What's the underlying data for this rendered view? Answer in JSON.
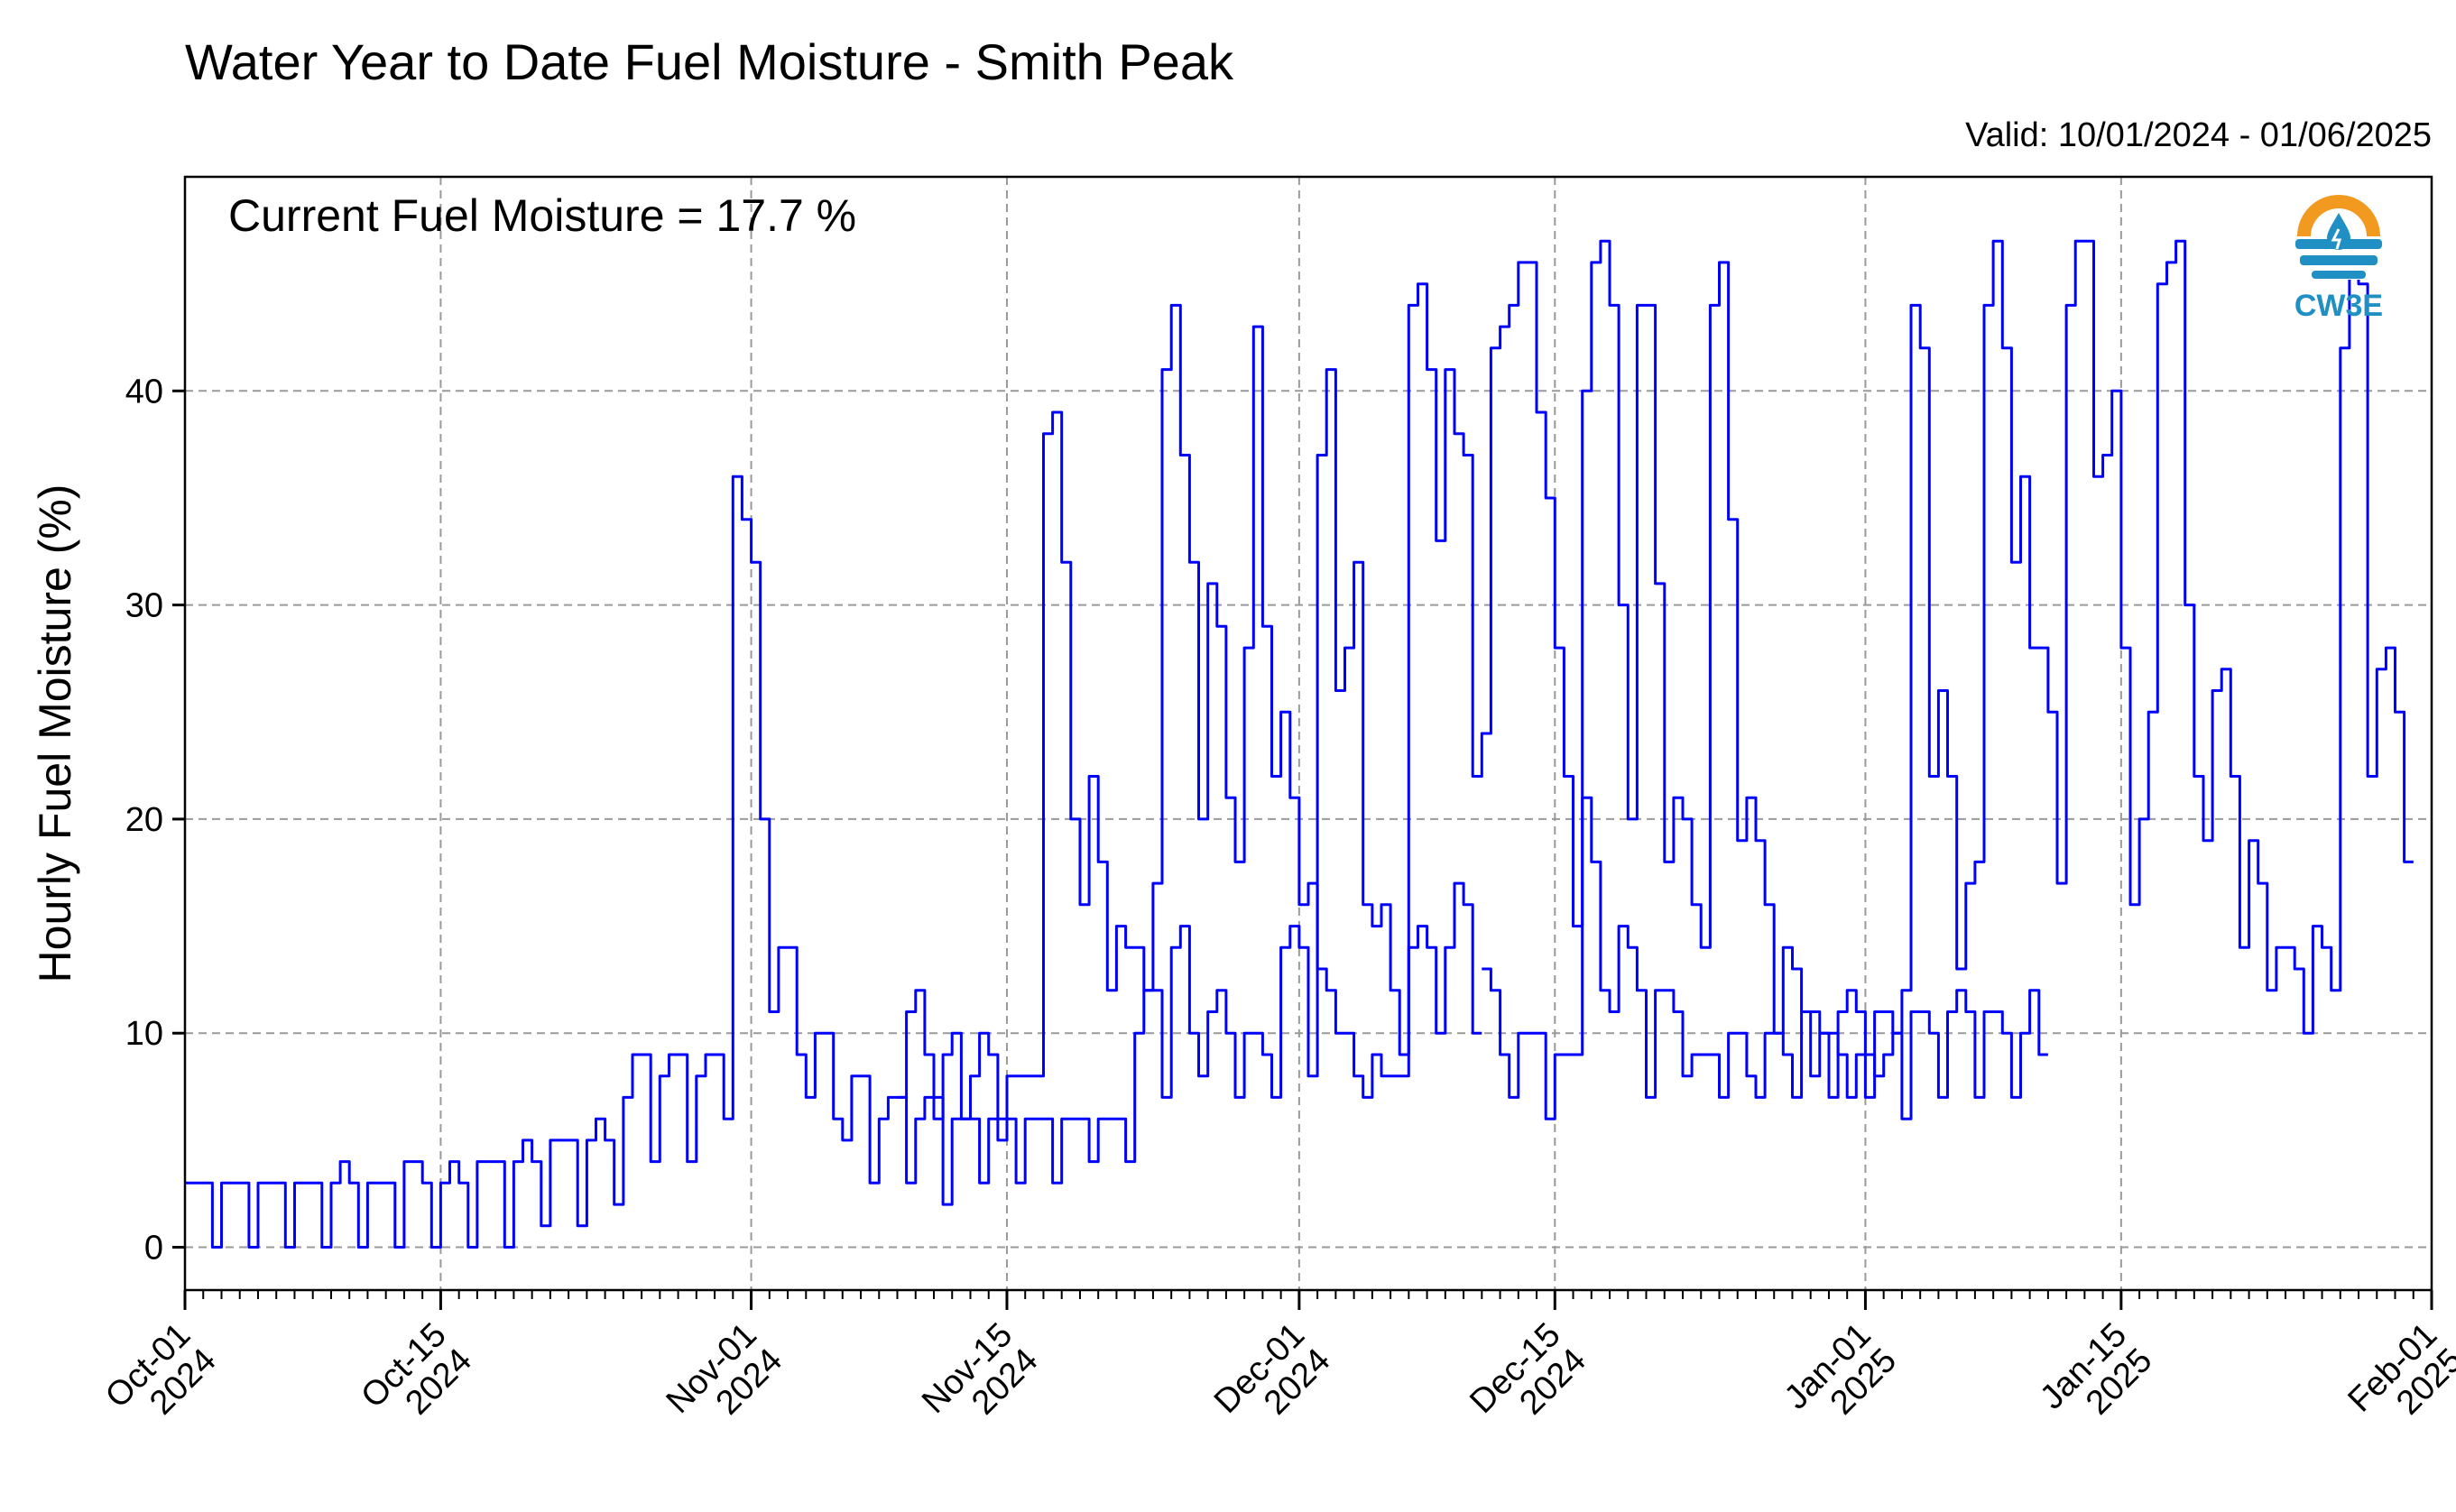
{
  "chart_data": {
    "type": "line",
    "title": "Water Year to Date Fuel Moisture - Smith Peak",
    "valid_text": "Valid: 10/01/2024 - 01/06/2025",
    "annotation": "Current Fuel Moisture = 17.7 %",
    "xlabel": "",
    "ylabel": "Hourly Fuel Moisture (%)",
    "xlim": [
      "2024-10-01",
      "2025-02-01"
    ],
    "ylim": [
      -2,
      50
    ],
    "grid": true,
    "yticks": [
      0,
      10,
      20,
      30,
      40
    ],
    "xticks": [
      {
        "date": "2024-10-01",
        "line1": "Oct-01",
        "line2": "2024"
      },
      {
        "date": "2024-10-15",
        "line1": "Oct-15",
        "line2": "2024"
      },
      {
        "date": "2024-11-01",
        "line1": "Nov-01",
        "line2": "2024"
      },
      {
        "date": "2024-11-15",
        "line1": "Nov-15",
        "line2": "2024"
      },
      {
        "date": "2024-12-01",
        "line1": "Dec-01",
        "line2": "2024"
      },
      {
        "date": "2024-12-15",
        "line1": "Dec-15",
        "line2": "2024"
      },
      {
        "date": "2025-01-01",
        "line1": "Jan-01",
        "line2": "2025"
      },
      {
        "date": "2025-01-15",
        "line1": "Jan-15",
        "line2": "2025"
      },
      {
        "date": "2025-02-01",
        "line1": "Feb-01",
        "line2": "2025"
      }
    ],
    "series": [
      {
        "color": "#0000ff",
        "segments": [
          {
            "start": "2024-10-01",
            "step_hours": 12,
            "values": [
              3,
              3,
              3,
              0,
              3,
              3,
              3,
              0,
              3,
              3,
              3,
              0,
              3,
              3,
              3,
              0,
              3,
              4,
              3,
              0,
              3,
              3,
              3,
              0,
              4,
              4,
              3,
              0,
              3,
              4,
              3,
              0,
              4,
              4,
              4,
              0,
              4,
              5,
              4,
              1,
              5,
              5,
              5,
              1,
              5,
              6,
              5,
              2,
              7,
              9,
              9,
              4,
              8,
              9,
              9,
              4,
              8,
              9,
              9,
              6,
              36,
              34,
              32,
              20,
              11,
              14,
              14,
              9,
              7,
              10,
              10,
              6,
              5,
              8,
              8,
              3,
              6,
              7,
              7,
              3,
              6,
              7,
              7,
              2,
              6,
              6,
              6,
              3,
              6,
              6,
              6,
              3,
              6,
              6,
              6,
              3,
              6,
              6,
              6,
              4,
              6,
              6,
              6,
              4,
              10,
              12,
              12,
              7,
              14,
              15,
              10,
              8,
              11,
              12,
              10,
              7,
              10,
              10,
              9,
              7,
              14,
              15,
              14,
              8,
              37,
              41,
              26,
              28,
              32,
              16,
              15,
              16,
              12,
              9,
              14,
              15,
              14,
              10,
              14,
              17,
              16,
              10
            ]
          },
          {
            "start": "2024-11-09",
            "step_hours": 12,
            "values": [
              7,
              11,
              12,
              9,
              6,
              9,
              10,
              6,
              8,
              10,
              9,
              5,
              8,
              8,
              8,
              8,
              38,
              39,
              32,
              20,
              16,
              22,
              18,
              12,
              15,
              14,
              14,
              12,
              17,
              41,
              44,
              37,
              32,
              20,
              31,
              29,
              21,
              18,
              28,
              43,
              29,
              22,
              25,
              21,
              16,
              17,
              13,
              12,
              10,
              10,
              8,
              7,
              9,
              8,
              8,
              8,
              44,
              45,
              41,
              33,
              41,
              38,
              37,
              22,
              24,
              42,
              43,
              44,
              46,
              46,
              39,
              35,
              28,
              22,
              15,
              21,
              18,
              12,
              11,
              15,
              14,
              12,
              7,
              12,
              12,
              11,
              8,
              9,
              9,
              9,
              7,
              10,
              10,
              8,
              7,
              10,
              10,
              9,
              7,
              11,
              11,
              10,
              7,
              11,
              12,
              11,
              7,
              11,
              11,
              10,
              6,
              11,
              11,
              10,
              7,
              11,
              12,
              11,
              7,
              11,
              11,
              10,
              7,
              10,
              12,
              9
            ]
          },
          {
            "start": "2024-12-11",
            "step_hours": 12,
            "values": [
              13,
              12,
              9,
              7,
              10,
              10,
              10,
              6,
              9,
              9,
              9,
              40,
              46,
              47,
              44,
              30,
              20,
              44,
              44,
              31,
              18,
              21,
              20,
              16,
              14,
              44,
              46,
              34,
              19,
              21,
              19,
              16,
              10,
              14,
              13,
              11,
              8,
              10,
              10,
              9,
              7,
              9,
              9,
              8,
              9,
              10,
              12,
              44,
              42,
              22,
              26,
              22,
              13,
              17,
              18,
              44,
              47,
              42,
              32,
              36,
              28,
              28,
              25,
              17,
              44,
              47,
              47,
              36,
              37,
              40,
              28,
              16,
              20,
              25,
              45,
              46,
              47,
              30,
              22,
              19,
              26,
              27,
              22,
              14,
              19,
              17,
              12,
              14,
              14,
              13,
              10,
              15,
              14,
              12,
              42,
              47,
              45,
              22,
              27,
              28,
              25,
              18
            ]
          }
        ]
      }
    ]
  },
  "logo": {
    "name": "CW3E",
    "primary_color": "#f29a1f",
    "secondary_color": "#1f8fc4"
  }
}
